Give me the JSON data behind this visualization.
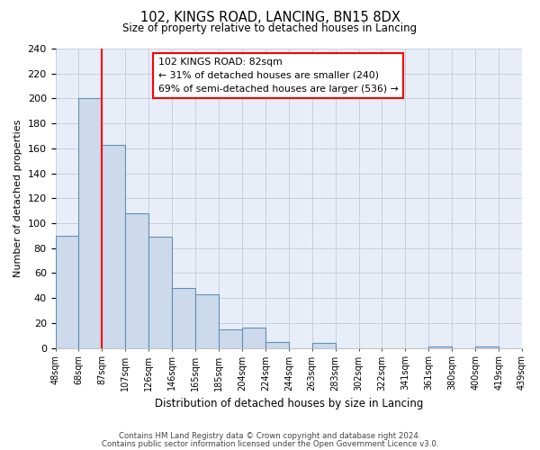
{
  "title": "102, KINGS ROAD, LANCING, BN15 8DX",
  "subtitle": "Size of property relative to detached houses in Lancing",
  "xlabel": "Distribution of detached houses by size in Lancing",
  "ylabel": "Number of detached properties",
  "bar_values": [
    90,
    200,
    163,
    108,
    89,
    48,
    43,
    15,
    16,
    5,
    0,
    4,
    0,
    0,
    0,
    0,
    1,
    0,
    1,
    0
  ],
  "bar_labels": [
    "48sqm",
    "68sqm",
    "87sqm",
    "107sqm",
    "126sqm",
    "146sqm",
    "165sqm",
    "185sqm",
    "204sqm",
    "224sqm",
    "244sqm",
    "263sqm",
    "283sqm",
    "302sqm",
    "322sqm",
    "341sqm",
    "361sqm",
    "380sqm",
    "400sqm",
    "419sqm",
    "439sqm"
  ],
  "bar_color": "#ccdaeb",
  "bar_edge_color": "#6090b8",
  "ylim": [
    0,
    240
  ],
  "yticks": [
    0,
    20,
    40,
    60,
    80,
    100,
    120,
    140,
    160,
    180,
    200,
    220,
    240
  ],
  "red_line_x": 2.0,
  "annotation_title": "102 KINGS ROAD: 82sqm",
  "annotation_line1": "← 31% of detached houses are smaller (240)",
  "annotation_line2": "69% of semi-detached houses are larger (536) →",
  "footer_line1": "Contains HM Land Registry data © Crown copyright and database right 2024.",
  "footer_line2": "Contains public sector information licensed under the Open Government Licence v3.0.",
  "background_color": "#ffffff",
  "plot_bg_color": "#e8eef8",
  "grid_color": "#c8d0dc"
}
